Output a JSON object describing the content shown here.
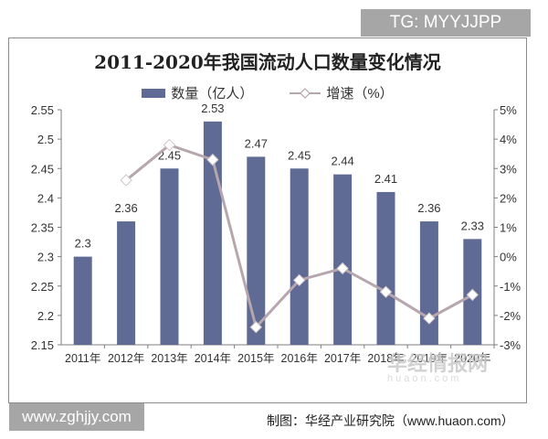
{
  "watermarks": {
    "top_right": "TG: MYYJJPP",
    "bottom_left": "www.zghjjy.com",
    "logo_text": "华经情报网",
    "logo_sub": "huaon.com"
  },
  "source": "制图：华经产业研究院（www.huaon.com）",
  "colors": {
    "bar": "#5f6b94",
    "line": "#b7a6ad",
    "marker_fill": "#ffffff",
    "axis": "#7f7f7f"
  },
  "chart_data": {
    "type": "bar+line",
    "title": "2011-2020年我国流动人口数量变化情况",
    "categories": [
      "2011年",
      "2012年",
      "2013年",
      "2014年",
      "2015年",
      "2016年",
      "2017年",
      "2018年",
      "2019年",
      "2020年"
    ],
    "series": [
      {
        "name": "数量（亿人）",
        "type": "bar",
        "axis": "left",
        "values": [
          2.3,
          2.36,
          2.45,
          2.53,
          2.47,
          2.45,
          2.44,
          2.41,
          2.36,
          2.33
        ],
        "labels": [
          "2.3",
          "2.36",
          "2.45",
          "2.53",
          "2.47",
          "2.45",
          "2.44",
          "2.41",
          "2.36",
          "2.33"
        ]
      },
      {
        "name": "增速（%）",
        "type": "line",
        "axis": "right",
        "values": [
          null,
          2.6,
          3.8,
          3.3,
          -2.4,
          -0.8,
          -0.4,
          -1.2,
          -2.1,
          -1.3
        ]
      }
    ],
    "left_axis": {
      "min": 2.15,
      "max": 2.55,
      "ticks": [
        "2.55",
        "2.5",
        "2.45",
        "2.4",
        "2.35",
        "2.3",
        "2.25",
        "2.2",
        "2.15"
      ]
    },
    "right_axis": {
      "min": -3,
      "max": 5,
      "ticks": [
        "5%",
        "4%",
        "3%",
        "2%",
        "1%",
        "0%",
        "-1%",
        "-2%",
        "-3%"
      ]
    },
    "legend_position": "top",
    "grid": false
  }
}
